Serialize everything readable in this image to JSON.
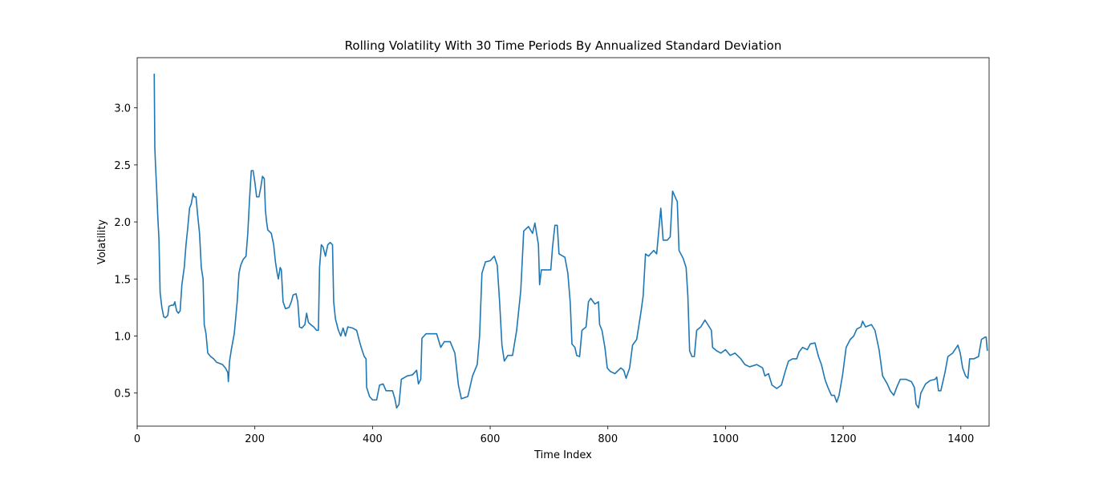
{
  "chart_data": {
    "type": "line",
    "title": "Rolling Volatility With 30 Time Periods By Annualized Standard Deviation",
    "x_label": "Time Index",
    "y_label": "Volatility",
    "color": "#1f77b4",
    "xlim": [
      0,
      1448
    ],
    "ylim": [
      0.21,
      3.44
    ],
    "xticks": [
      0,
      200,
      400,
      600,
      800,
      1000,
      1200,
      1400
    ],
    "yticks": [
      0.5,
      {
        "value": 1,
        "label": "1.0"
      },
      1.5,
      {
        "value": 2,
        "label": "2.0"
      },
      2.5,
      {
        "value": 3,
        "label": "3.0"
      }
    ],
    "x": [
      29,
      30,
      31,
      33,
      35,
      37,
      39,
      42,
      45,
      48,
      52,
      54,
      58,
      62,
      64,
      67,
      70,
      73,
      76,
      80,
      83,
      86,
      89,
      92,
      95,
      97,
      100,
      103,
      106,
      109,
      112,
      114,
      117,
      120,
      125,
      130,
      135,
      140,
      145,
      150,
      154,
      155,
      157,
      160,
      165,
      170,
      173,
      176,
      180,
      185,
      188,
      191,
      194,
      197,
      200,
      203,
      207,
      210,
      213,
      216,
      218,
      220,
      222,
      228,
      232,
      235,
      238,
      240,
      243,
      245,
      248,
      252,
      258,
      262,
      265,
      270,
      273,
      276,
      280,
      285,
      288,
      291,
      295,
      300,
      305,
      308,
      310,
      313,
      316,
      320,
      324,
      328,
      332,
      334,
      337,
      342,
      346,
      350,
      354,
      358,
      366,
      373,
      378,
      382,
      386,
      389,
      390,
      395,
      400,
      407,
      412,
      418,
      423,
      434,
      438,
      441,
      445,
      449,
      459,
      468,
      475,
      478,
      482,
      484,
      491,
      509,
      516,
      522,
      532,
      540,
      546,
      551,
      562,
      570,
      578,
      582,
      586,
      592,
      600,
      607,
      612,
      616,
      620,
      624,
      630,
      638,
      645,
      652,
      657,
      665,
      672,
      676,
      682,
      684,
      687,
      694,
      703,
      706,
      710,
      714,
      717,
      727,
      732,
      736,
      739,
      744,
      747,
      752,
      756,
      763,
      767,
      771,
      778,
      784,
      786,
      790,
      795,
      799,
      804,
      812,
      822,
      827,
      831,
      837,
      842,
      849,
      856,
      860,
      864,
      869,
      878,
      883,
      887,
      890,
      894,
      901,
      906,
      910,
      916,
      918,
      921,
      928,
      933,
      936,
      939,
      943,
      947,
      951,
      958,
      965,
      970,
      976,
      978,
      985,
      992,
      1000,
      1008,
      1016,
      1026,
      1033,
      1041,
      1053,
      1063,
      1067,
      1073,
      1079,
      1087,
      1095,
      1101,
      1107,
      1114,
      1121,
      1125,
      1131,
      1139,
      1144,
      1152,
      1158,
      1163,
      1169,
      1174,
      1180,
      1185,
      1189,
      1193,
      1199,
      1205,
      1212,
      1218,
      1223,
      1230,
      1233,
      1238,
      1248,
      1254,
      1261,
      1267,
      1275,
      1280,
      1286,
      1291,
      1297,
      1307,
      1316,
      1321,
      1324,
      1328,
      1332,
      1340,
      1348,
      1356,
      1359,
      1362,
      1366,
      1373,
      1378,
      1386,
      1395,
      1399,
      1403,
      1408,
      1412,
      1415,
      1422,
      1430,
      1435,
      1441,
      1443,
      1445
    ],
    "values": [
      3.3,
      2.65,
      2.52,
      2.3,
      2.05,
      1.85,
      1.38,
      1.25,
      1.17,
      1.16,
      1.18,
      1.26,
      1.27,
      1.27,
      1.3,
      1.22,
      1.2,
      1.22,
      1.45,
      1.6,
      1.8,
      1.95,
      2.12,
      2.16,
      2.25,
      2.22,
      2.22,
      2.05,
      1.9,
      1.6,
      1.5,
      1.1,
      1.02,
      0.85,
      0.82,
      0.8,
      0.77,
      0.76,
      0.75,
      0.72,
      0.68,
      0.6,
      0.78,
      0.88,
      1.02,
      1.3,
      1.55,
      1.62,
      1.67,
      1.7,
      1.9,
      2.2,
      2.45,
      2.45,
      2.35,
      2.22,
      2.22,
      2.3,
      2.4,
      2.38,
      2.1,
      2.0,
      1.93,
      1.9,
      1.8,
      1.65,
      1.55,
      1.5,
      1.6,
      1.58,
      1.3,
      1.24,
      1.25,
      1.3,
      1.36,
      1.37,
      1.3,
      1.08,
      1.07,
      1.1,
      1.2,
      1.12,
      1.1,
      1.08,
      1.05,
      1.05,
      1.6,
      1.8,
      1.78,
      1.7,
      1.8,
      1.82,
      1.8,
      1.3,
      1.15,
      1.05,
      1.0,
      1.07,
      1.0,
      1.08,
      1.07,
      1.05,
      0.95,
      0.88,
      0.82,
      0.8,
      0.55,
      0.47,
      0.44,
      0.44,
      0.57,
      0.58,
      0.52,
      0.52,
      0.45,
      0.37,
      0.4,
      0.62,
      0.65,
      0.66,
      0.7,
      0.58,
      0.62,
      0.98,
      1.02,
      1.02,
      0.9,
      0.95,
      0.95,
      0.85,
      0.57,
      0.45,
      0.47,
      0.65,
      0.75,
      1.0,
      1.55,
      1.65,
      1.66,
      1.7,
      1.62,
      1.3,
      0.92,
      0.78,
      0.83,
      0.83,
      1.05,
      1.4,
      1.92,
      1.96,
      1.9,
      1.99,
      1.8,
      1.45,
      1.58,
      1.58,
      1.58,
      1.78,
      1.97,
      1.97,
      1.72,
      1.69,
      1.55,
      1.3,
      0.93,
      0.9,
      0.83,
      0.82,
      1.05,
      1.08,
      1.3,
      1.33,
      1.28,
      1.3,
      1.1,
      1.05,
      0.9,
      0.72,
      0.69,
      0.67,
      0.72,
      0.7,
      0.63,
      0.72,
      0.92,
      0.97,
      1.2,
      1.35,
      1.72,
      1.7,
      1.75,
      1.72,
      1.95,
      2.12,
      1.84,
      1.84,
      1.87,
      2.27,
      2.2,
      2.18,
      1.75,
      1.68,
      1.6,
      1.35,
      0.87,
      0.82,
      0.82,
      1.05,
      1.08,
      1.14,
      1.1,
      1.05,
      0.9,
      0.87,
      0.85,
      0.88,
      0.83,
      0.85,
      0.8,
      0.75,
      0.73,
      0.75,
      0.72,
      0.65,
      0.67,
      0.57,
      0.54,
      0.57,
      0.68,
      0.78,
      0.8,
      0.8,
      0.86,
      0.9,
      0.88,
      0.93,
      0.94,
      0.82,
      0.75,
      0.62,
      0.55,
      0.48,
      0.48,
      0.42,
      0.48,
      0.66,
      0.9,
      0.97,
      1.0,
      1.06,
      1.08,
      1.13,
      1.08,
      1.1,
      1.05,
      0.88,
      0.65,
      0.58,
      0.52,
      0.48,
      0.55,
      0.62,
      0.62,
      0.6,
      0.55,
      0.4,
      0.37,
      0.5,
      0.58,
      0.61,
      0.62,
      0.64,
      0.52,
      0.52,
      0.68,
      0.82,
      0.85,
      0.92,
      0.85,
      0.72,
      0.65,
      0.63,
      0.8,
      0.8,
      0.82,
      0.97,
      0.99,
      0.99,
      0.87
    ]
  }
}
